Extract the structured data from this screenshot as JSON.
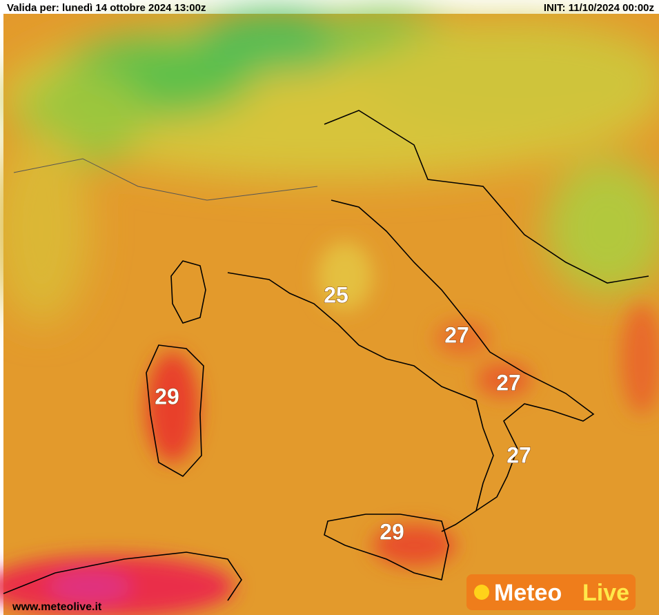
{
  "header": {
    "valid": "Valida per: lunedì 14 ottobre 2024 13:00z",
    "init": "INIT: 11/10/2024 00:00z"
  },
  "labels": [
    {
      "text": "25"
    },
    {
      "text": "27"
    },
    {
      "text": "27"
    },
    {
      "text": "27"
    },
    {
      "text": "29"
    },
    {
      "text": "29"
    }
  ],
  "footer": {
    "url": "www.meteolive.it"
  },
  "logo": {
    "meteo": "Meteo",
    "live": "Live"
  }
}
